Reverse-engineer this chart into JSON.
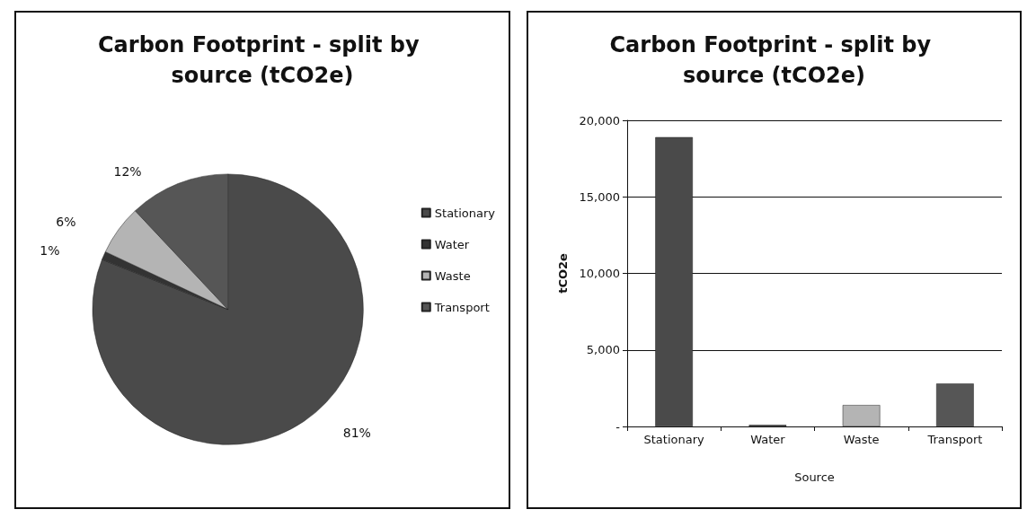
{
  "chart_data": [
    {
      "type": "pie",
      "title": "Carbon Footprint - split by source (tCO2e)",
      "categories": [
        "Stationary",
        "Water",
        "Waste",
        "Transport"
      ],
      "values": [
        81,
        1,
        6,
        12
      ],
      "value_labels": [
        "81%",
        "1%",
        "6%",
        "12%"
      ],
      "colors": [
        "#4a4a4a",
        "#333333",
        "#b4b4b4",
        "#565656"
      ],
      "legend": "right"
    },
    {
      "type": "bar",
      "title": "Carbon Footprint - split by source (tCO2e)",
      "xlabel": "Source",
      "ylabel": "tCO2e",
      "categories": [
        "Stationary",
        "Water",
        "Waste",
        "Transport"
      ],
      "values": [
        18900,
        100,
        1400,
        2800
      ],
      "colors": [
        "#4a4a4a",
        "#333333",
        "#b4b4b4",
        "#565656"
      ],
      "ylim": [
        0,
        20000
      ],
      "yticks": [
        {
          "value": 0,
          "label": "-"
        },
        {
          "value": 5000,
          "label": "5,000"
        },
        {
          "value": 10000,
          "label": "10,000"
        },
        {
          "value": 15000,
          "label": "15,000"
        },
        {
          "value": 20000,
          "label": "20,000"
        }
      ],
      "grid": "y",
      "legend": false
    }
  ]
}
